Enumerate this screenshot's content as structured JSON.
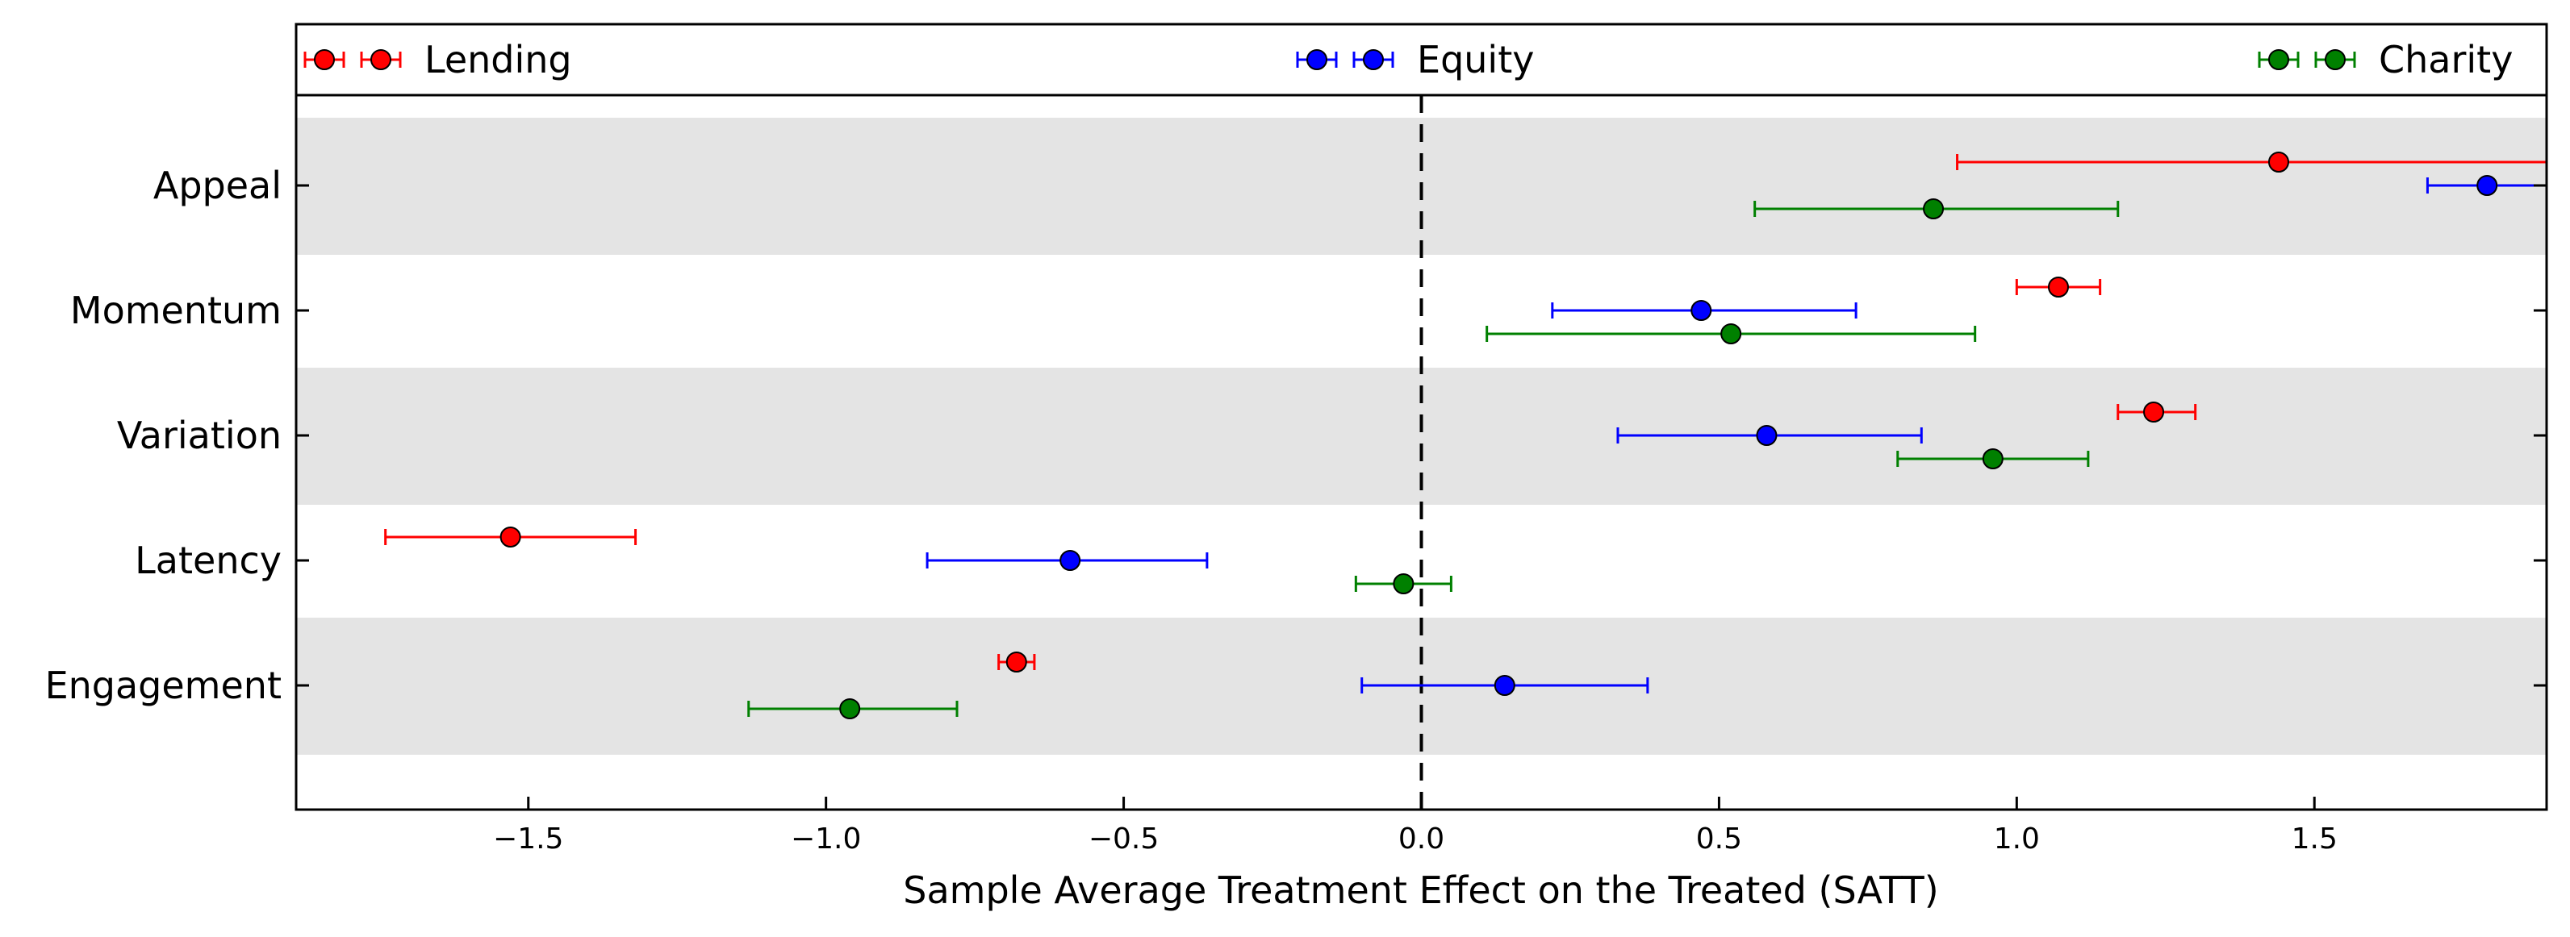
{
  "chart_data": {
    "type": "errorbar",
    "xlabel": "Sample Average Treatment Effect on the Treated (SATT)",
    "ylabel": "",
    "xlim": [
      -1.89,
      1.89
    ],
    "reference_line": {
      "x": 0.0,
      "style": "dashed",
      "color": "#000000"
    },
    "grid": false,
    "banded_rows": true,
    "band_color": "#e4e4e4",
    "legend_position": "top",
    "categories": [
      "Appeal",
      "Momentum",
      "Variation",
      "Latency",
      "Engagement"
    ],
    "xticks": [
      -1.5,
      -1.0,
      -0.5,
      0.0,
      0.5,
      1.0,
      1.5
    ],
    "xtick_labels": [
      "−1.5",
      "−1.0",
      "−0.5",
      "0.0",
      "0.5",
      "1.0",
      "1.5"
    ],
    "series": [
      {
        "name": "Lending",
        "color": "#ff0000",
        "points": [
          {
            "category": "Appeal",
            "value": 1.44,
            "low": 0.9,
            "high": 1.89
          },
          {
            "category": "Momentum",
            "value": 1.07,
            "low": 1.0,
            "high": 1.14
          },
          {
            "category": "Variation",
            "value": 1.23,
            "low": 1.17,
            "high": 1.3
          },
          {
            "category": "Latency",
            "value": -1.53,
            "low": -1.74,
            "high": -1.32
          },
          {
            "category": "Engagement",
            "value": -0.68,
            "low": -0.71,
            "high": -0.65
          }
        ]
      },
      {
        "name": "Equity",
        "color": "#0000ff",
        "points": [
          {
            "category": "Appeal",
            "value": 1.79,
            "low": 1.69,
            "high": 1.89
          },
          {
            "category": "Momentum",
            "value": 0.47,
            "low": 0.22,
            "high": 0.73
          },
          {
            "category": "Variation",
            "value": 0.58,
            "low": 0.33,
            "high": 0.84
          },
          {
            "category": "Latency",
            "value": -0.59,
            "low": -0.83,
            "high": -0.36
          },
          {
            "category": "Engagement",
            "value": 0.14,
            "low": -0.1,
            "high": 0.38
          }
        ]
      },
      {
        "name": "Charity",
        "color": "#008000",
        "points": [
          {
            "category": "Appeal",
            "value": 0.86,
            "low": 0.56,
            "high": 1.17
          },
          {
            "category": "Momentum",
            "value": 0.52,
            "low": 0.11,
            "high": 0.93
          },
          {
            "category": "Variation",
            "value": 0.96,
            "low": 0.8,
            "high": 1.12
          },
          {
            "category": "Latency",
            "value": -0.03,
            "low": -0.11,
            "high": 0.05
          },
          {
            "category": "Engagement",
            "value": -0.96,
            "low": -1.13,
            "high": -0.78
          }
        ]
      }
    ]
  }
}
